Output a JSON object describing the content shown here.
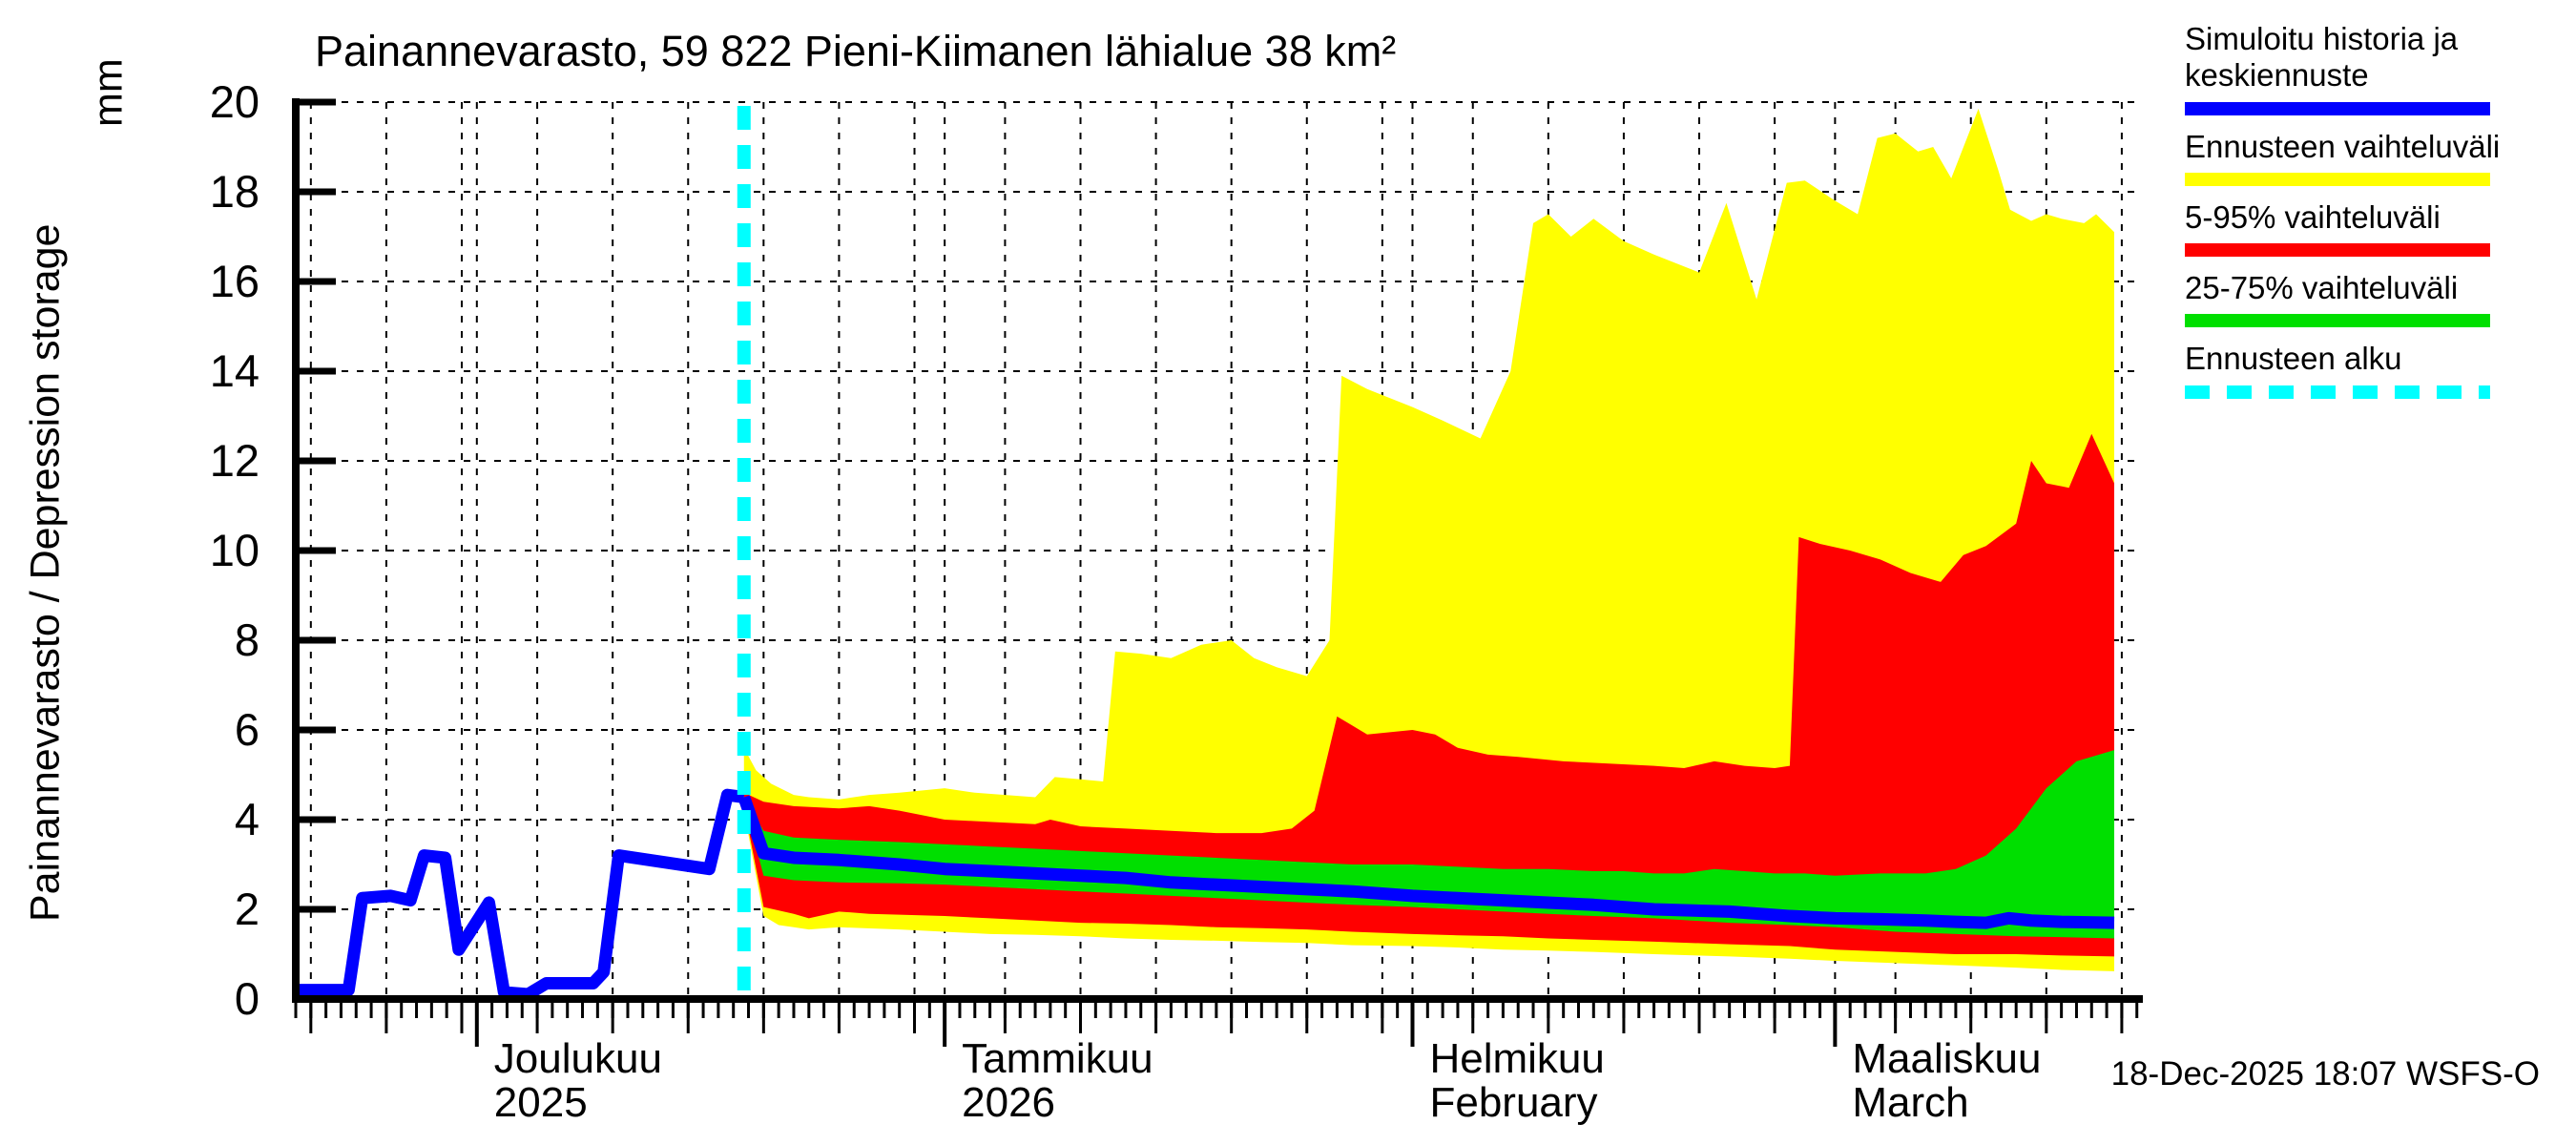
{
  "title": "Painannevarasto, 59 822 Pieni-Kiimanen lähialue 38 km²",
  "y_axis": {
    "label": "Painannevarasto / Depression storage",
    "unit": "mm",
    "ticks": [
      0,
      2,
      4,
      6,
      8,
      10,
      12,
      14,
      16,
      18,
      20
    ]
  },
  "legend": {
    "items": [
      {
        "label": "Simuloitu historia ja keskiennuste",
        "color": "#0000ff",
        "style": "solid"
      },
      {
        "label": "Ennusteen vaihteluväli",
        "color": "#ffff00",
        "style": "solid"
      },
      {
        "label": "5-95% vaihteluväli",
        "color": "#ff0000",
        "style": "solid"
      },
      {
        "label": "25-75% vaihteluväli",
        "color": "#00df00",
        "style": "solid"
      },
      {
        "label": "Ennusteen alku",
        "color": "#00ffff",
        "style": "dashed"
      }
    ]
  },
  "footer": {
    "timestamp": "18-Dec-2025 18:07 WSFS-O"
  },
  "chart_data": {
    "type": "area",
    "title": "Painannevarasto, 59 822 Pieni-Kiimanen lähialue 38 km²",
    "ylabel": "Painannevarasto / Depression storage",
    "unit": "mm",
    "ylim": [
      0,
      20
    ],
    "y_ticks": [
      0,
      2,
      4,
      6,
      8,
      10,
      12,
      14,
      16,
      18,
      20
    ],
    "x_start_date": "2025-11-19",
    "total_days": 122,
    "forecast_start_day": 29.7,
    "forecast_start_date": "2025-12-18",
    "forecast_line_color": "#00ffff",
    "month_ticks": [
      {
        "day": 12,
        "label": "Joulukuu",
        "sublabel": "2025"
      },
      {
        "day": 43,
        "label": "Tammikuu",
        "sublabel": "2026"
      },
      {
        "day": 74,
        "label": "Helmikuu",
        "sublabel": "February"
      },
      {
        "day": 102,
        "label": "Maaliskuu",
        "sublabel": "March"
      }
    ],
    "grid_days": [
      1,
      6,
      11,
      16,
      21,
      26,
      31,
      36,
      41,
      47,
      52,
      57,
      62,
      67,
      72,
      78,
      83,
      88,
      93,
      98,
      106,
      111,
      116,
      121
    ],
    "series": [
      {
        "name": "Simuloitu historia",
        "color": "#0000ff",
        "points": [
          [
            0,
            0.2
          ],
          [
            3.5,
            0.2
          ],
          [
            4.4,
            2.25
          ],
          [
            6.3,
            2.3
          ],
          [
            7.6,
            2.2
          ],
          [
            8.5,
            3.2
          ],
          [
            9.9,
            3.15
          ],
          [
            10.8,
            1.1
          ],
          [
            12.8,
            2.15
          ],
          [
            13.8,
            0.15
          ],
          [
            15.4,
            0.02
          ],
          [
            16.6,
            0.35
          ],
          [
            19.7,
            0.35
          ],
          [
            20.4,
            0.6
          ],
          [
            21.4,
            3.2
          ],
          [
            27.4,
            2.9
          ],
          [
            28.6,
            4.55
          ],
          [
            29.7,
            4.5
          ]
        ]
      },
      {
        "name": "Keskiennuste",
        "color": "#0000ff",
        "points": [
          [
            29.7,
            4.5
          ],
          [
            31,
            3.25
          ],
          [
            33,
            3.15
          ],
          [
            36,
            3.1
          ],
          [
            40,
            3.0
          ],
          [
            43,
            2.9
          ],
          [
            46,
            2.85
          ],
          [
            49,
            2.8
          ],
          [
            52,
            2.75
          ],
          [
            55,
            2.7
          ],
          [
            58,
            2.6
          ],
          [
            61,
            2.55
          ],
          [
            64,
            2.5
          ],
          [
            67,
            2.45
          ],
          [
            70,
            2.4
          ],
          [
            74,
            2.3
          ],
          [
            77,
            2.25
          ],
          [
            80,
            2.2
          ],
          [
            83,
            2.15
          ],
          [
            86,
            2.1
          ],
          [
            90,
            2.0
          ],
          [
            95,
            1.95
          ],
          [
            99,
            1.85
          ],
          [
            102,
            1.8
          ],
          [
            105,
            1.78
          ],
          [
            108,
            1.75
          ],
          [
            110,
            1.72
          ],
          [
            112,
            1.7
          ],
          [
            113.5,
            1.8
          ],
          [
            115,
            1.75
          ],
          [
            117,
            1.72
          ],
          [
            120.5,
            1.7
          ]
        ]
      }
    ],
    "bands": [
      {
        "name": "Ennusteen vaihteluväli",
        "color": "#ffff00",
        "upper": [
          [
            29.7,
            5.6
          ],
          [
            30.5,
            5.1
          ],
          [
            31.5,
            4.8
          ],
          [
            33,
            4.55
          ],
          [
            34,
            4.5
          ],
          [
            36,
            4.45
          ],
          [
            38,
            4.55
          ],
          [
            40,
            4.6
          ],
          [
            43,
            4.7
          ],
          [
            45,
            4.6
          ],
          [
            47,
            4.55
          ],
          [
            49,
            4.5
          ],
          [
            50.3,
            4.95
          ],
          [
            52,
            4.9
          ],
          [
            53.5,
            4.85
          ],
          [
            54.3,
            7.75
          ],
          [
            56,
            7.7
          ],
          [
            58,
            7.6
          ],
          [
            60,
            7.9
          ],
          [
            62,
            8.0
          ],
          [
            63.5,
            7.6
          ],
          [
            65,
            7.4
          ],
          [
            67,
            7.2
          ],
          [
            68.5,
            8.0
          ],
          [
            69.3,
            13.9
          ],
          [
            71,
            13.6
          ],
          [
            74,
            13.2
          ],
          [
            76,
            12.9
          ],
          [
            78.5,
            12.5
          ],
          [
            80.5,
            14.0
          ],
          [
            82,
            17.3
          ],
          [
            83,
            17.5
          ],
          [
            84.5,
            17.0
          ],
          [
            86,
            17.4
          ],
          [
            88,
            16.9
          ],
          [
            90,
            16.6
          ],
          [
            93,
            16.2
          ],
          [
            94.8,
            17.75
          ],
          [
            96.8,
            15.6
          ],
          [
            98.8,
            18.2
          ],
          [
            100,
            18.25
          ],
          [
            102,
            17.8
          ],
          [
            103.5,
            17.5
          ],
          [
            104.8,
            19.2
          ],
          [
            106,
            19.3
          ],
          [
            107.5,
            18.9
          ],
          [
            108.5,
            19.0
          ],
          [
            109.7,
            18.3
          ],
          [
            111.5,
            19.85
          ],
          [
            112.8,
            18.5
          ],
          [
            113.6,
            17.6
          ],
          [
            115,
            17.35
          ],
          [
            116,
            17.5
          ],
          [
            117,
            17.4
          ],
          [
            118.5,
            17.3
          ],
          [
            119.3,
            17.5
          ],
          [
            120.5,
            17.1
          ]
        ],
        "lower": [
          [
            29.7,
            4.2
          ],
          [
            31,
            1.85
          ],
          [
            32,
            1.65
          ],
          [
            33,
            1.6
          ],
          [
            34,
            1.55
          ],
          [
            36,
            1.6
          ],
          [
            40,
            1.55
          ],
          [
            43,
            1.5
          ],
          [
            46,
            1.45
          ],
          [
            49,
            1.43
          ],
          [
            52,
            1.4
          ],
          [
            55,
            1.35
          ],
          [
            58,
            1.32
          ],
          [
            61,
            1.3
          ],
          [
            64,
            1.27
          ],
          [
            67,
            1.25
          ],
          [
            70,
            1.2
          ],
          [
            74,
            1.18
          ],
          [
            77,
            1.15
          ],
          [
            80,
            1.1
          ],
          [
            83,
            1.08
          ],
          [
            86,
            1.05
          ],
          [
            90,
            1.0
          ],
          [
            95,
            0.95
          ],
          [
            99,
            0.9
          ],
          [
            102,
            0.85
          ],
          [
            106,
            0.8
          ],
          [
            110,
            0.75
          ],
          [
            114,
            0.7
          ],
          [
            117,
            0.65
          ],
          [
            120.5,
            0.62
          ]
        ]
      },
      {
        "name": "5-95% vaihteluväli",
        "color": "#ff0000",
        "upper": [
          [
            29.7,
            4.6
          ],
          [
            31,
            4.4
          ],
          [
            33,
            4.3
          ],
          [
            36,
            4.25
          ],
          [
            38,
            4.3
          ],
          [
            40,
            4.2
          ],
          [
            43,
            4.0
          ],
          [
            46,
            3.95
          ],
          [
            49,
            3.9
          ],
          [
            50,
            4.0
          ],
          [
            52,
            3.85
          ],
          [
            55,
            3.8
          ],
          [
            58,
            3.75
          ],
          [
            61,
            3.7
          ],
          [
            64,
            3.7
          ],
          [
            66,
            3.8
          ],
          [
            67.5,
            4.2
          ],
          [
            69,
            6.3
          ],
          [
            70,
            6.1
          ],
          [
            71,
            5.9
          ],
          [
            72.5,
            5.95
          ],
          [
            74,
            6.0
          ],
          [
            75.5,
            5.9
          ],
          [
            77,
            5.6
          ],
          [
            79,
            5.45
          ],
          [
            81,
            5.4
          ],
          [
            84,
            5.3
          ],
          [
            87,
            5.25
          ],
          [
            90,
            5.2
          ],
          [
            92,
            5.15
          ],
          [
            94,
            5.3
          ],
          [
            96,
            5.2
          ],
          [
            98,
            5.15
          ],
          [
            99,
            5.2
          ],
          [
            99.6,
            10.3
          ],
          [
            101,
            10.15
          ],
          [
            103,
            10.0
          ],
          [
            105,
            9.8
          ],
          [
            107,
            9.5
          ],
          [
            109,
            9.3
          ],
          [
            110.5,
            9.9
          ],
          [
            112,
            10.1
          ],
          [
            114,
            10.6
          ],
          [
            115,
            12.0
          ],
          [
            116,
            11.5
          ],
          [
            117.5,
            11.4
          ],
          [
            119,
            12.6
          ],
          [
            120.5,
            11.5
          ]
        ],
        "lower": [
          [
            29.7,
            4.3
          ],
          [
            31,
            2.05
          ],
          [
            33,
            1.9
          ],
          [
            34,
            1.8
          ],
          [
            36,
            1.95
          ],
          [
            38,
            1.9
          ],
          [
            40,
            1.88
          ],
          [
            43,
            1.85
          ],
          [
            46,
            1.8
          ],
          [
            49,
            1.75
          ],
          [
            52,
            1.7
          ],
          [
            55,
            1.68
          ],
          [
            58,
            1.65
          ],
          [
            61,
            1.6
          ],
          [
            64,
            1.58
          ],
          [
            67,
            1.55
          ],
          [
            70,
            1.5
          ],
          [
            74,
            1.45
          ],
          [
            77,
            1.42
          ],
          [
            80,
            1.4
          ],
          [
            83,
            1.35
          ],
          [
            86,
            1.32
          ],
          [
            90,
            1.28
          ],
          [
            95,
            1.22
          ],
          [
            99,
            1.18
          ],
          [
            102,
            1.1
          ],
          [
            106,
            1.05
          ],
          [
            110,
            1.0
          ],
          [
            114,
            1.0
          ],
          [
            117,
            0.97
          ],
          [
            120.5,
            0.95
          ]
        ]
      },
      {
        "name": "25-75% vaihteluväli",
        "color": "#00df00",
        "upper": [
          [
            29.7,
            4.5
          ],
          [
            31,
            3.75
          ],
          [
            33,
            3.6
          ],
          [
            36,
            3.55
          ],
          [
            40,
            3.5
          ],
          [
            43,
            3.45
          ],
          [
            46,
            3.4
          ],
          [
            49,
            3.35
          ],
          [
            52,
            3.3
          ],
          [
            55,
            3.25
          ],
          [
            58,
            3.2
          ],
          [
            61,
            3.15
          ],
          [
            64,
            3.1
          ],
          [
            67,
            3.05
          ],
          [
            70,
            3.0
          ],
          [
            74,
            3.0
          ],
          [
            77,
            2.95
          ],
          [
            80,
            2.9
          ],
          [
            83,
            2.9
          ],
          [
            86,
            2.85
          ],
          [
            88,
            2.85
          ],
          [
            90,
            2.8
          ],
          [
            92,
            2.8
          ],
          [
            94,
            2.9
          ],
          [
            96,
            2.85
          ],
          [
            98,
            2.8
          ],
          [
            100,
            2.8
          ],
          [
            102,
            2.75
          ],
          [
            105,
            2.8
          ],
          [
            108,
            2.8
          ],
          [
            110,
            2.9
          ],
          [
            112,
            3.2
          ],
          [
            114,
            3.8
          ],
          [
            116,
            4.7
          ],
          [
            118,
            5.3
          ],
          [
            120.5,
            5.55
          ]
        ],
        "lower": [
          [
            29.7,
            4.4
          ],
          [
            31,
            2.75
          ],
          [
            33,
            2.65
          ],
          [
            36,
            2.6
          ],
          [
            40,
            2.58
          ],
          [
            43,
            2.55
          ],
          [
            46,
            2.5
          ],
          [
            49,
            2.45
          ],
          [
            52,
            2.4
          ],
          [
            55,
            2.35
          ],
          [
            58,
            2.3
          ],
          [
            61,
            2.25
          ],
          [
            64,
            2.2
          ],
          [
            67,
            2.15
          ],
          [
            70,
            2.1
          ],
          [
            74,
            2.05
          ],
          [
            77,
            2.0
          ],
          [
            80,
            1.95
          ],
          [
            83,
            1.9
          ],
          [
            86,
            1.85
          ],
          [
            90,
            1.8
          ],
          [
            95,
            1.7
          ],
          [
            99,
            1.65
          ],
          [
            102,
            1.6
          ],
          [
            106,
            1.5
          ],
          [
            110,
            1.45
          ],
          [
            114,
            1.4
          ],
          [
            117,
            1.38
          ],
          [
            120.5,
            1.35
          ]
        ]
      }
    ]
  }
}
